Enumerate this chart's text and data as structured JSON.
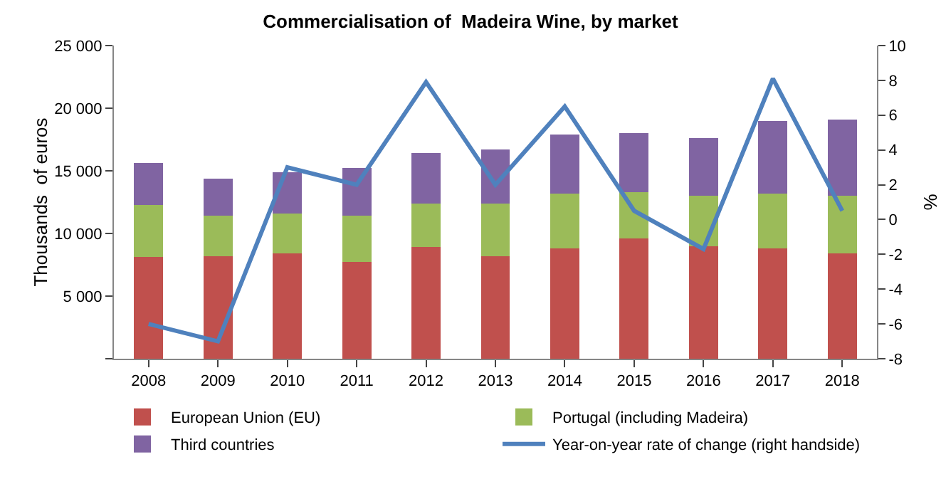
{
  "chart_data": {
    "type": "bar",
    "title": "Commercialisation of  Madeira Wine, by market",
    "ylabel": "Thousands  of euros",
    "y2label": "%",
    "categories": [
      "2008",
      "2009",
      "2010",
      "2011",
      "2012",
      "2013",
      "2014",
      "2015",
      "2016",
      "2017",
      "2018"
    ],
    "stacked": true,
    "series": [
      {
        "name": "European Union (EU)",
        "color": "#c0504d",
        "values": [
          8100,
          8200,
          8400,
          7700,
          8900,
          8200,
          8800,
          9600,
          9000,
          8800,
          8400
        ]
      },
      {
        "name": "Portugal (including Madeira)",
        "color": "#9bbb59",
        "values": [
          4200,
          3200,
          3200,
          3700,
          3500,
          4200,
          4400,
          3700,
          4000,
          4400,
          4600
        ]
      },
      {
        "name": "Third countries",
        "color": "#8064a2",
        "values": [
          3300,
          3000,
          3300,
          3800,
          4000,
          4300,
          4700,
          4700,
          4600,
          5800,
          6100
        ]
      },
      {
        "name": "Year-on-year rate of change (right handside)",
        "color": "#4f81bd",
        "type": "line",
        "axis": "y2",
        "values": [
          -6.0,
          -7.0,
          3.0,
          2.0,
          7.9,
          2.0,
          6.5,
          0.5,
          -1.7,
          8.1,
          0.5
        ]
      }
    ],
    "ylim": [
      0,
      25000
    ],
    "yticks": [
      {
        "value": 0,
        "label": null
      },
      {
        "value": 5000,
        "label": "5 000"
      },
      {
        "value": 10000,
        "label": "10 000"
      },
      {
        "value": 15000,
        "label": "15 000"
      },
      {
        "value": 20000,
        "label": "20 000"
      },
      {
        "value": 25000,
        "label": "25 000"
      }
    ],
    "y2lim": [
      -8,
      10
    ],
    "y2ticks": [
      -8,
      -6,
      -4,
      -2,
      0,
      2,
      4,
      6,
      8,
      10
    ],
    "grid": false,
    "legend": "bottom",
    "marker": "none",
    "line_style": "solid"
  }
}
